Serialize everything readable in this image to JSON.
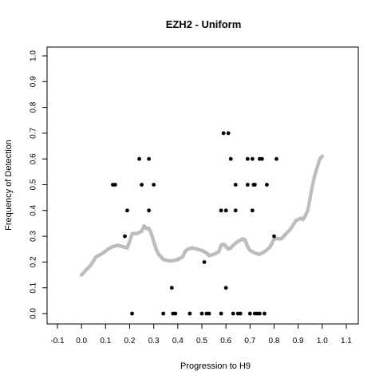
{
  "chart_data": {
    "type": "scatter",
    "title": "EZH2 - Uniform",
    "xlabel": "Progression to H9",
    "ylabel": "Frequency of Detection",
    "xlim": [
      -0.1,
      1.1
    ],
    "ylim": [
      0.0,
      1.0
    ],
    "x_ticks": [
      "-0.1",
      "0.0",
      "0.1",
      "0.2",
      "0.3",
      "0.4",
      "0.5",
      "0.6",
      "0.7",
      "0.8",
      "0.9",
      "1.0",
      "1.1"
    ],
    "y_ticks": [
      "0.0",
      "0.1",
      "0.2",
      "0.3",
      "0.4",
      "0.5",
      "0.6",
      "0.7",
      "0.8",
      "0.9",
      "1.0"
    ],
    "grid": false,
    "series": [
      {
        "style": "black-points",
        "color": "#000000",
        "points": [
          [
            0.13,
            0.5
          ],
          [
            0.14,
            0.5
          ],
          [
            0.19,
            0.4
          ],
          [
            0.18,
            0.3
          ],
          [
            0.21,
            0.0
          ],
          [
            0.24,
            0.6
          ],
          [
            0.25,
            0.5
          ],
          [
            0.28,
            0.6
          ],
          [
            0.28,
            0.4
          ],
          [
            0.3,
            0.5
          ],
          [
            0.34,
            0.0
          ],
          [
            0.375,
            0.1
          ],
          [
            0.38,
            0.0
          ],
          [
            0.39,
            0.0
          ],
          [
            0.45,
            0.0
          ],
          [
            0.5,
            0.0
          ],
          [
            0.51,
            0.2
          ],
          [
            0.52,
            0.0
          ],
          [
            0.53,
            0.0
          ],
          [
            0.58,
            0.0
          ],
          [
            0.58,
            0.4
          ],
          [
            0.59,
            0.7
          ],
          [
            0.6,
            0.4
          ],
          [
            0.61,
            0.7
          ],
          [
            0.6,
            0.1
          ],
          [
            0.62,
            0.6
          ],
          [
            0.63,
            0.0
          ],
          [
            0.64,
            0.5
          ],
          [
            0.64,
            0.4
          ],
          [
            0.65,
            0.0
          ],
          [
            0.66,
            0.0
          ],
          [
            0.69,
            0.6
          ],
          [
            0.69,
            0.5
          ],
          [
            0.7,
            0.0
          ],
          [
            0.71,
            0.4
          ],
          [
            0.71,
            0.6
          ],
          [
            0.715,
            0.5
          ],
          [
            0.72,
            0.5
          ],
          [
            0.72,
            0.0
          ],
          [
            0.73,
            0.0
          ],
          [
            0.74,
            0.6
          ],
          [
            0.75,
            0.6
          ],
          [
            0.74,
            0.0
          ],
          [
            0.76,
            0.0
          ],
          [
            0.77,
            0.5
          ],
          [
            0.8,
            0.3
          ],
          [
            0.81,
            0.6
          ]
        ]
      },
      {
        "style": "grey-trend",
        "color": "#bdbdbd",
        "points": [
          [
            0.0,
            0.15
          ],
          [
            0.02,
            0.17
          ],
          [
            0.04,
            0.19
          ],
          [
            0.06,
            0.22
          ],
          [
            0.09,
            0.235
          ],
          [
            0.11,
            0.25
          ],
          [
            0.13,
            0.26
          ],
          [
            0.15,
            0.265
          ],
          [
            0.17,
            0.26
          ],
          [
            0.19,
            0.255
          ],
          [
            0.2,
            0.28
          ],
          [
            0.21,
            0.31
          ],
          [
            0.23,
            0.31
          ],
          [
            0.25,
            0.32
          ],
          [
            0.26,
            0.34
          ],
          [
            0.27,
            0.33
          ],
          [
            0.28,
            0.33
          ],
          [
            0.29,
            0.31
          ],
          [
            0.3,
            0.28
          ],
          [
            0.31,
            0.25
          ],
          [
            0.32,
            0.23
          ],
          [
            0.33,
            0.22
          ],
          [
            0.34,
            0.21
          ],
          [
            0.36,
            0.205
          ],
          [
            0.38,
            0.205
          ],
          [
            0.4,
            0.21
          ],
          [
            0.42,
            0.22
          ],
          [
            0.43,
            0.24
          ],
          [
            0.44,
            0.25
          ],
          [
            0.46,
            0.255
          ],
          [
            0.48,
            0.25
          ],
          [
            0.5,
            0.245
          ],
          [
            0.51,
            0.24
          ],
          [
            0.52,
            0.235
          ],
          [
            0.53,
            0.225
          ],
          [
            0.55,
            0.23
          ],
          [
            0.57,
            0.24
          ],
          [
            0.58,
            0.265
          ],
          [
            0.59,
            0.27
          ],
          [
            0.6,
            0.26
          ],
          [
            0.61,
            0.25
          ],
          [
            0.62,
            0.255
          ],
          [
            0.63,
            0.265
          ],
          [
            0.65,
            0.28
          ],
          [
            0.67,
            0.29
          ],
          [
            0.68,
            0.285
          ],
          [
            0.69,
            0.26
          ],
          [
            0.7,
            0.245
          ],
          [
            0.72,
            0.235
          ],
          [
            0.74,
            0.23
          ],
          [
            0.76,
            0.24
          ],
          [
            0.78,
            0.255
          ],
          [
            0.79,
            0.27
          ],
          [
            0.8,
            0.29
          ],
          [
            0.81,
            0.29
          ],
          [
            0.83,
            0.29
          ],
          [
            0.84,
            0.3
          ],
          [
            0.85,
            0.31
          ],
          [
            0.87,
            0.33
          ],
          [
            0.89,
            0.36
          ],
          [
            0.91,
            0.37
          ],
          [
            0.92,
            0.365
          ],
          [
            0.93,
            0.38
          ],
          [
            0.94,
            0.4
          ],
          [
            0.95,
            0.45
          ],
          [
            0.96,
            0.5
          ],
          [
            0.97,
            0.54
          ],
          [
            0.98,
            0.57
          ],
          [
            0.99,
            0.6
          ],
          [
            1.0,
            0.61
          ]
        ]
      }
    ]
  }
}
